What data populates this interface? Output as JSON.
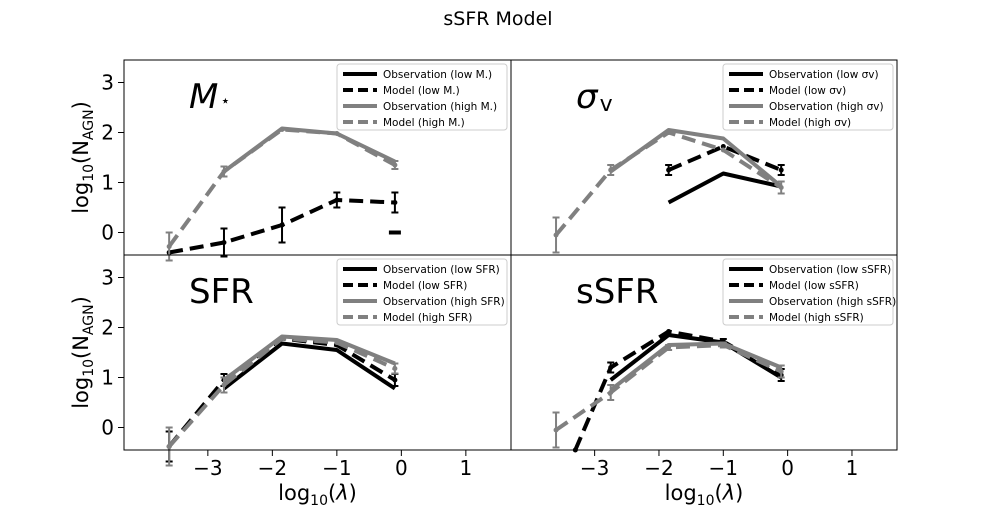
{
  "title": "sSFR Model",
  "chart_data": {
    "type": "line",
    "title": "sSFR Model",
    "xlabel": "log10(λ)",
    "ylabel": "log10(N_AGN)",
    "xlim": [
      -4.3,
      1.7
    ],
    "ylim": [
      -0.45,
      3.45
    ],
    "xticks": [
      -3,
      -2,
      -1,
      0,
      1
    ],
    "xtick_labels": [
      "−3",
      "−2",
      "−1",
      "0",
      "1"
    ],
    "yticks": [
      0,
      1,
      2,
      3
    ],
    "ytick_labels": [
      "0",
      "1",
      "2",
      "3"
    ],
    "legend_location": "top-right",
    "colors": {
      "low": "#000000",
      "high": "#808080"
    },
    "panels": [
      {
        "id": "mstar",
        "label_main": "M",
        "label_sub": "⋆",
        "series": [
          {
            "name": "Observation (low M.)",
            "color": "#000000",
            "style": "solid",
            "x": [
              -0.1
            ],
            "y": [
              0
            ]
          },
          {
            "name": "Model (low M.)",
            "color": "#000000",
            "style": "dashed",
            "x": [
              -3.6,
              -2.75,
              -1.85,
              -1.0,
              -0.1
            ],
            "y": [
              -0.4,
              -0.2,
              0.15,
              0.65,
              0.6
            ],
            "err": [
              0,
              0.28,
              0.35,
              0.15,
              0.2
            ]
          },
          {
            "name": "Observation (high M.)",
            "color": "#808080",
            "style": "solid",
            "x": [
              -2.75,
              -1.85,
              -1.0,
              -0.1
            ],
            "y": [
              1.22,
              2.08,
              1.98,
              1.42
            ]
          },
          {
            "name": "Model (high M.)",
            "color": "#808080",
            "style": "dashed",
            "x": [
              -3.6,
              -2.75,
              -1.85,
              -1.0,
              -0.1
            ],
            "y": [
              -0.28,
              1.22,
              2.06,
              1.98,
              1.35
            ],
            "err": [
              0.28,
              0.1,
              0,
              0,
              0.08
            ]
          }
        ]
      },
      {
        "id": "sigma",
        "label_main": "σ",
        "label_sub": "v",
        "series": [
          {
            "name": "Observation (low σv)",
            "color": "#000000",
            "style": "solid",
            "x": [
              -1.85,
              -1.0,
              -0.1
            ],
            "y": [
              0.6,
              1.18,
              0.92
            ]
          },
          {
            "name": "Model (low σv)",
            "color": "#000000",
            "style": "dashed",
            "x": [
              -1.85,
              -1.0,
              -0.1
            ],
            "y": [
              1.25,
              1.72,
              1.25
            ],
            "err": [
              0.1,
              0,
              0.1
            ]
          },
          {
            "name": "Observation (high σv)",
            "color": "#808080",
            "style": "solid",
            "x": [
              -2.75,
              -1.85,
              -1.0,
              -0.1
            ],
            "y": [
              1.22,
              2.05,
              1.88,
              0.92
            ]
          },
          {
            "name": "Model (high σv)",
            "color": "#808080",
            "style": "dashed",
            "x": [
              -3.6,
              -2.75,
              -1.85,
              -1.0,
              -0.1
            ],
            "y": [
              -0.05,
              1.25,
              2.0,
              1.65,
              0.9
            ],
            "err": [
              0.35,
              0.1,
              0,
              0,
              0.12
            ]
          }
        ]
      },
      {
        "id": "sfr",
        "label_main": "SFR",
        "label_sub": "",
        "series": [
          {
            "name": "Observation (low SFR)",
            "color": "#000000",
            "style": "solid",
            "x": [
              -2.75,
              -1.85,
              -1.0,
              -0.1
            ],
            "y": [
              0.78,
              1.68,
              1.55,
              0.78
            ]
          },
          {
            "name": "Model (low SFR)",
            "color": "#000000",
            "style": "dashed",
            "x": [
              -3.6,
              -2.75,
              -1.85,
              -1.0,
              -0.1
            ],
            "y": [
              -0.38,
              0.95,
              1.78,
              1.65,
              0.95
            ],
            "err": [
              0.3,
              0.12,
              0,
              0,
              0.12
            ]
          },
          {
            "name": "Observation (high SFR)",
            "color": "#808080",
            "style": "solid",
            "x": [
              -2.75,
              -1.85,
              -1.0,
              -0.1
            ],
            "y": [
              0.95,
              1.82,
              1.75,
              1.28
            ]
          },
          {
            "name": "Model (high SFR)",
            "color": "#808080",
            "style": "dashed",
            "x": [
              -3.6,
              -2.75,
              -1.85,
              -1.0,
              -0.1
            ],
            "y": [
              -0.38,
              0.85,
              1.78,
              1.7,
              1.18
            ],
            "err": [
              0.38,
              0.15,
              0,
              0,
              0.1
            ]
          }
        ]
      },
      {
        "id": "ssfr",
        "label_main": "sSFR",
        "label_sub": "",
        "series": [
          {
            "name": "Observation (low sSFR)",
            "color": "#000000",
            "style": "solid",
            "x": [
              -2.75,
              -1.85,
              -1.0,
              -0.1
            ],
            "y": [
              0.95,
              1.85,
              1.7,
              1.0
            ]
          },
          {
            "name": "Model (low sSFR)",
            "color": "#000000",
            "style": "dashed",
            "x": [
              -3.3,
              -2.75,
              -1.85,
              -1.0,
              -0.1
            ],
            "y": [
              -0.45,
              1.2,
              1.92,
              1.72,
              1.05
            ],
            "err": [
              0,
              0.1,
              0,
              0.05,
              0.12
            ]
          },
          {
            "name": "Observation (high sSFR)",
            "color": "#808080",
            "style": "solid",
            "x": [
              -2.75,
              -1.85,
              -1.0,
              -0.1
            ],
            "y": [
              0.75,
              1.65,
              1.68,
              1.2
            ]
          },
          {
            "name": "Model (high sSFR)",
            "color": "#808080",
            "style": "dashed",
            "x": [
              -3.6,
              -2.75,
              -1.85,
              -1.0,
              -0.1
            ],
            "y": [
              -0.05,
              0.7,
              1.6,
              1.65,
              1.12
            ],
            "err": [
              0.35,
              0.15,
              0.05,
              0.05,
              0.12
            ]
          }
        ]
      }
    ]
  }
}
